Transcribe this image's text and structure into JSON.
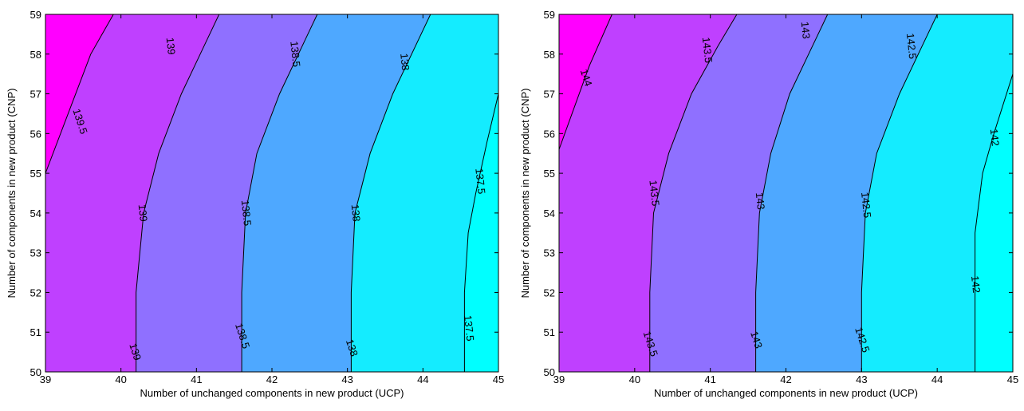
{
  "chart_data": [
    {
      "type": "contour",
      "xlabel": "Number of unchanged components in new product (UCP)",
      "ylabel": "Number of components in new product (CNP)",
      "xlim": [
        39,
        45
      ],
      "ylim": [
        50,
        59
      ],
      "xticks": [
        "39",
        "40",
        "41",
        "42",
        "43",
        "44",
        "45"
      ],
      "yticks": [
        "50",
        "51",
        "52",
        "53",
        "54",
        "55",
        "56",
        "57",
        "58",
        "59"
      ],
      "contour_lines": [
        {
          "level": "139.5",
          "points": [
            [
              39.0,
              55.0
            ],
            [
              39.6,
              58.0
            ],
            [
              39.9,
              59.0
            ]
          ]
        },
        {
          "level": "139",
          "points": [
            [
              40.2,
              50.0
            ],
            [
              40.2,
              52.0
            ],
            [
              40.3,
              54.0
            ],
            [
              40.5,
              55.5
            ],
            [
              40.8,
              57.0
            ],
            [
              41.1,
              58.2
            ],
            [
              41.3,
              59.0
            ]
          ]
        },
        {
          "level": "138.5",
          "points": [
            [
              41.6,
              50.0
            ],
            [
              41.6,
              52.0
            ],
            [
              41.65,
              54.0
            ],
            [
              41.8,
              55.5
            ],
            [
              42.1,
              57.0
            ],
            [
              42.4,
              58.2
            ],
            [
              42.6,
              59.0
            ]
          ]
        },
        {
          "level": "138",
          "points": [
            [
              43.05,
              50.0
            ],
            [
              43.05,
              52.0
            ],
            [
              43.1,
              54.0
            ],
            [
              43.3,
              55.5
            ],
            [
              43.6,
              57.0
            ],
            [
              43.9,
              58.2
            ],
            [
              44.1,
              59.0
            ]
          ]
        },
        {
          "level": "137.5",
          "points": [
            [
              44.55,
              50.0
            ],
            [
              44.55,
              52.0
            ],
            [
              44.6,
              53.5
            ],
            [
              44.7,
              54.5
            ],
            [
              44.85,
              55.8
            ],
            [
              45.0,
              57.0
            ]
          ]
        }
      ],
      "fill_colors": [
        "#ff00ff",
        "#bf40ff",
        "#8f70ff",
        "#4ea8ff",
        "#14ecff",
        "#00ffff"
      ],
      "label_texts": [
        "139.5",
        "139",
        "139",
        "139",
        "138.5",
        "138.5",
        "138.5",
        "138",
        "138",
        "138",
        "137.5",
        "137.5"
      ]
    },
    {
      "type": "contour",
      "xlabel": "Number of unchanged components in new product (UCP)",
      "ylabel": "Number of components in new product (CNP)",
      "xlim": [
        39,
        45
      ],
      "ylim": [
        50,
        59
      ],
      "xticks": [
        "39",
        "40",
        "41",
        "42",
        "43",
        "44",
        "45"
      ],
      "yticks": [
        "50",
        "51",
        "52",
        "53",
        "54",
        "55",
        "56",
        "57",
        "58",
        "59"
      ],
      "contour_lines": [
        {
          "level": "144",
          "points": [
            [
              39.0,
              55.6
            ],
            [
              39.4,
              57.7
            ],
            [
              39.7,
              59.0
            ]
          ]
        },
        {
          "level": "143.5",
          "points": [
            [
              40.2,
              50.0
            ],
            [
              40.2,
              52.0
            ],
            [
              40.25,
              54.0
            ],
            [
              40.45,
              55.5
            ],
            [
              40.75,
              57.0
            ],
            [
              41.1,
              58.2
            ],
            [
              41.35,
              59.0
            ]
          ]
        },
        {
          "level": "143",
          "points": [
            [
              41.6,
              50.0
            ],
            [
              41.6,
              52.0
            ],
            [
              41.65,
              54.0
            ],
            [
              41.8,
              55.5
            ],
            [
              42.05,
              57.0
            ],
            [
              42.35,
              58.2
            ],
            [
              42.55,
              59.0
            ]
          ]
        },
        {
          "level": "142.5",
          "points": [
            [
              43.0,
              50.0
            ],
            [
              43.0,
              52.0
            ],
            [
              43.05,
              54.0
            ],
            [
              43.2,
              55.5
            ],
            [
              43.5,
              57.0
            ],
            [
              43.8,
              58.2
            ],
            [
              44.0,
              59.0
            ]
          ]
        },
        {
          "level": "142",
          "points": [
            [
              44.5,
              50.0
            ],
            [
              44.5,
              52.0
            ],
            [
              44.5,
              53.5
            ],
            [
              44.6,
              55.0
            ],
            [
              44.75,
              56.0
            ],
            [
              45.0,
              57.5
            ]
          ]
        }
      ],
      "fill_colors": [
        "#ff00ff",
        "#bf40ff",
        "#8f70ff",
        "#4ea8ff",
        "#14ecff",
        "#00ffff"
      ],
      "label_texts": [
        "144",
        "143.5",
        "143.5",
        "143.5",
        "143",
        "143",
        "143",
        "142.5",
        "142.5",
        "142.5",
        "142",
        "142"
      ]
    }
  ]
}
